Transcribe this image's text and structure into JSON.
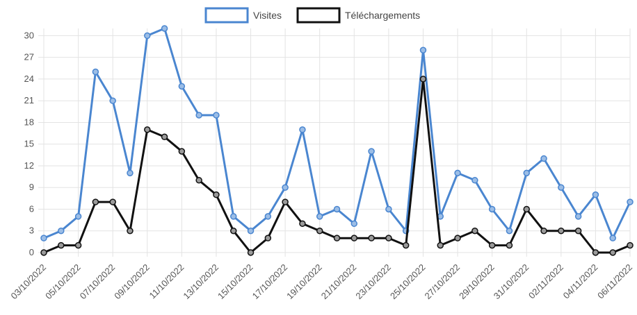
{
  "chart_data": {
    "type": "line",
    "title": "",
    "xlabel": "",
    "ylabel": "",
    "ylim": [
      0,
      31
    ],
    "y_ticks": [
      0,
      3,
      6,
      9,
      12,
      15,
      18,
      21,
      24,
      27,
      30
    ],
    "grid": true,
    "legend_position": "top-center",
    "categories": [
      "03/10/2022",
      "04/10/2022",
      "05/10/2022",
      "06/10/2022",
      "07/10/2022",
      "08/10/2022",
      "09/10/2022",
      "10/10/2022",
      "11/10/2022",
      "12/10/2022",
      "13/10/2022",
      "14/10/2022",
      "15/10/2022",
      "16/10/2022",
      "17/10/2022",
      "18/10/2022",
      "19/10/2022",
      "20/10/2022",
      "21/10/2022",
      "22/10/2022",
      "23/10/2022",
      "24/10/2022",
      "25/10/2022",
      "26/10/2022",
      "27/10/2022",
      "28/10/2022",
      "29/10/2022",
      "30/10/2022",
      "31/10/2022",
      "01/11/2022",
      "02/11/2022",
      "03/11/2022",
      "04/11/2022",
      "05/11/2022",
      "06/11/2022"
    ],
    "x_tick_labels": [
      "03/10/2022",
      "",
      "05/10/2022",
      "",
      "07/10/2022",
      "",
      "09/10/2022",
      "",
      "11/10/2022",
      "",
      "13/10/2022",
      "",
      "15/10/2022",
      "",
      "17/10/2022",
      "",
      "19/10/2022",
      "",
      "21/10/2022",
      "",
      "23/10/2022",
      "",
      "25/10/2022",
      "",
      "27/10/2022",
      "",
      "29/10/2022",
      "",
      "31/10/2022",
      "",
      "02/11/2022",
      "",
      "04/11/2022",
      "",
      "06/11/2022"
    ],
    "series": [
      {
        "name": "Visites",
        "color": "#4a86d0",
        "values": [
          2,
          3,
          5,
          25,
          21,
          11,
          30,
          31,
          23,
          19,
          19,
          5,
          3,
          5,
          9,
          17,
          5,
          6,
          4,
          14,
          6,
          3,
          28,
          5,
          11,
          10,
          6,
          3,
          11,
          13,
          9,
          5,
          8,
          2,
          7
        ]
      },
      {
        "name": "Téléchargements",
        "color": "#111111",
        "values": [
          0,
          1,
          1,
          7,
          7,
          3,
          17,
          16,
          14,
          10,
          8,
          3,
          0,
          2,
          7,
          4,
          3,
          2,
          2,
          2,
          2,
          1,
          24,
          1,
          2,
          3,
          1,
          1,
          6,
          3,
          3,
          3,
          0,
          0,
          1
        ]
      }
    ]
  }
}
